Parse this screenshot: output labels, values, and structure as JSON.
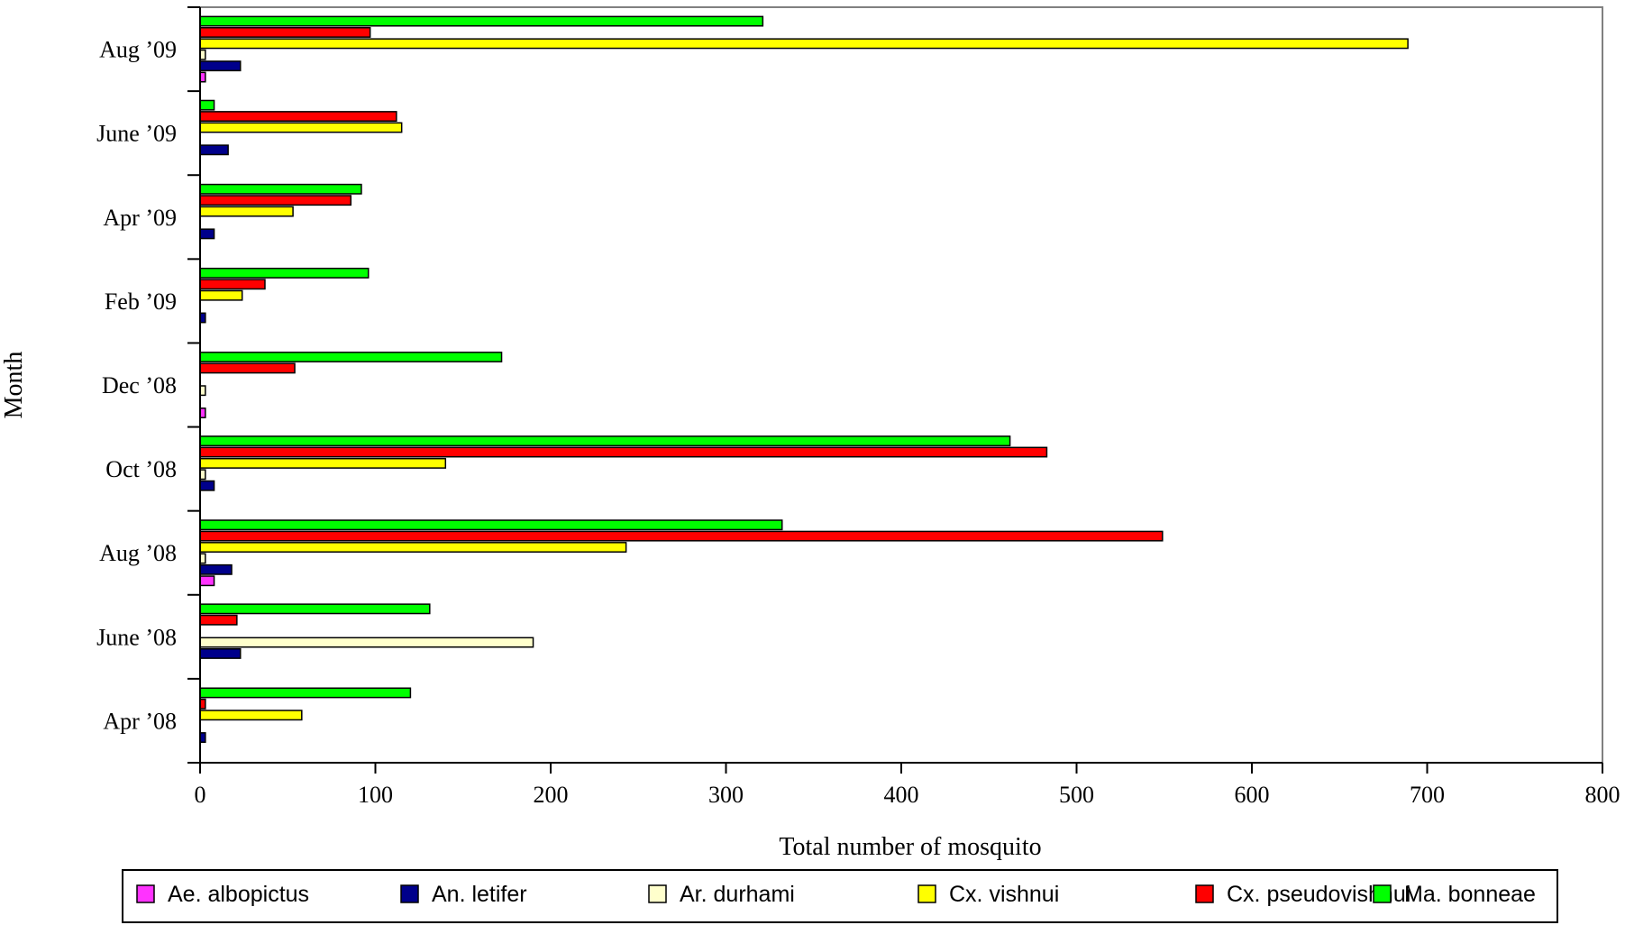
{
  "chart_data": {
    "type": "bar",
    "orientation": "horizontal",
    "title": "",
    "xlabel": "Total number of mosquito",
    "ylabel": "Month",
    "xlim": [
      0,
      800
    ],
    "xticks": [
      0,
      100,
      200,
      300,
      400,
      500,
      600,
      700,
      800
    ],
    "grid": false,
    "legend_position": "bottom",
    "categories": [
      "Apr ’08",
      "June ’08",
      "Aug ’08",
      "Oct ’08",
      "Dec ’08",
      "Feb ’09",
      "Apr ’09",
      "June ’09",
      "Aug ’09"
    ],
    "series": [
      {
        "name": "Ae. albopictus",
        "color": "#ff33ff",
        "values": [
          0,
          0,
          8,
          0,
          3,
          0,
          0,
          0,
          3
        ]
      },
      {
        "name": "An. letifer",
        "color": "#00008b",
        "values": [
          3,
          23,
          18,
          8,
          0,
          3,
          8,
          16,
          23
        ]
      },
      {
        "name": "Ar. durhami",
        "color": "#ffffcc",
        "values": [
          0,
          190,
          3,
          3,
          3,
          0,
          0,
          0,
          3
        ]
      },
      {
        "name": "Cx. vishnui",
        "color": "#ffff00",
        "values": [
          58,
          0,
          243,
          140,
          0,
          24,
          53,
          115,
          689
        ]
      },
      {
        "name": "Cx. pseudovishnui",
        "color": "#ff0000",
        "values": [
          3,
          21,
          549,
          483,
          54,
          37,
          86,
          112,
          97
        ]
      },
      {
        "name": "Ma. bonneae",
        "color": "#00ff00",
        "values": [
          120,
          131,
          332,
          462,
          172,
          96,
          92,
          8,
          321
        ]
      }
    ]
  }
}
